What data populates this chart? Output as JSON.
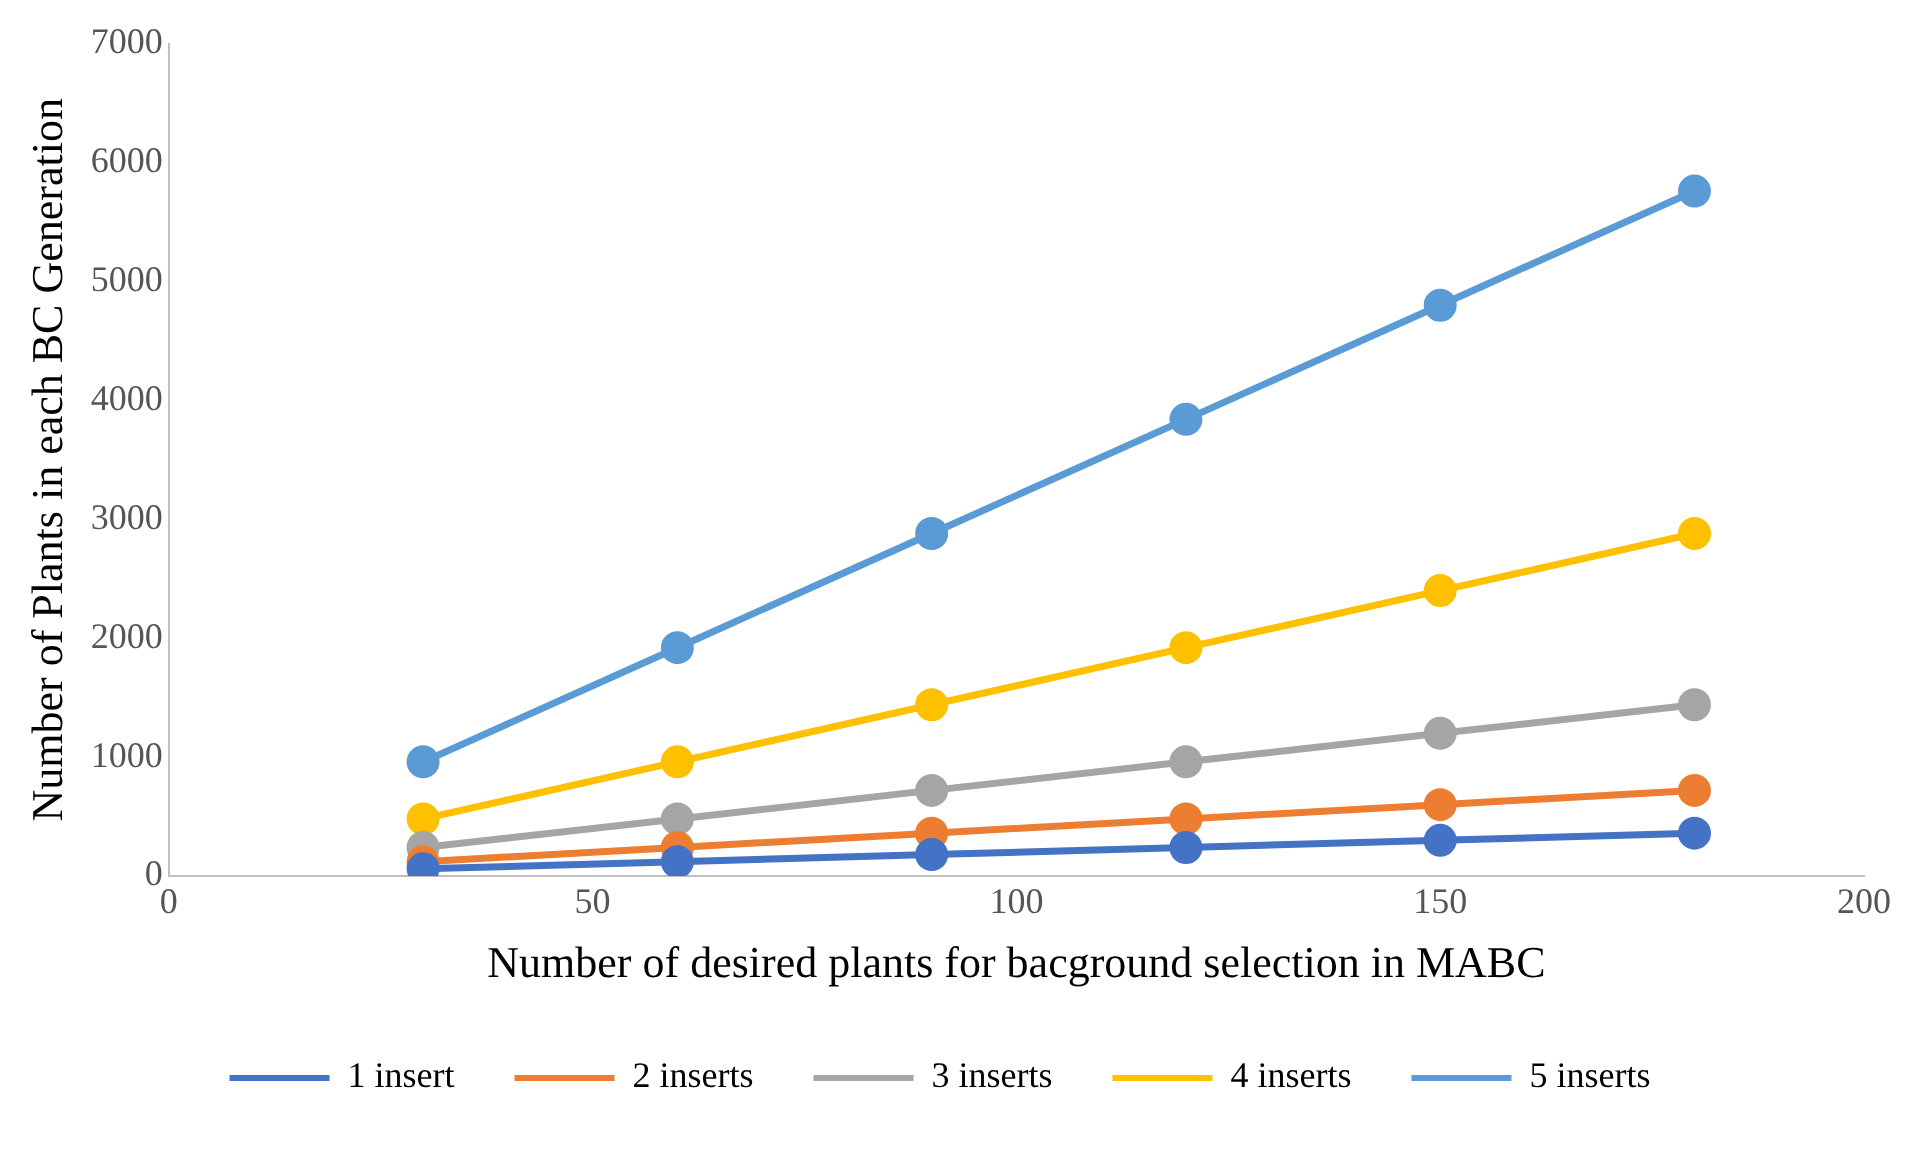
{
  "chart_data": {
    "type": "line",
    "xlabel": "Number of desired plants for bacground selection in MABC",
    "ylabel": "Number of Plants in each BC Generation",
    "x": [
      30,
      60,
      90,
      120,
      150,
      180
    ],
    "series": [
      {
        "name": "1 insert",
        "color": "#4472c4",
        "values": [
          60,
          120,
          180,
          240,
          300,
          360
        ]
      },
      {
        "name": "2 inserts",
        "color": "#ed7d31",
        "values": [
          120,
          240,
          360,
          480,
          600,
          720
        ]
      },
      {
        "name": "3 inserts",
        "color": "#a5a5a5",
        "values": [
          240,
          480,
          720,
          960,
          1200,
          1440
        ]
      },
      {
        "name": "4 inserts",
        "color": "#ffc000",
        "values": [
          480,
          960,
          1440,
          1920,
          2400,
          2880
        ]
      },
      {
        "name": "5 inserts",
        "color": "#5b9bd5",
        "values": [
          960,
          1920,
          2880,
          3840,
          4800,
          5760
        ]
      }
    ],
    "xlim": [
      0,
      200
    ],
    "xticks": [
      0,
      50,
      100,
      150,
      200
    ],
    "ylim": [
      0,
      7000
    ],
    "yticks": [
      0,
      1000,
      2000,
      3000,
      4000,
      5000,
      6000,
      7000
    ],
    "grid": false,
    "legend": "bottom",
    "marker": "circle",
    "line_style": "solid"
  }
}
